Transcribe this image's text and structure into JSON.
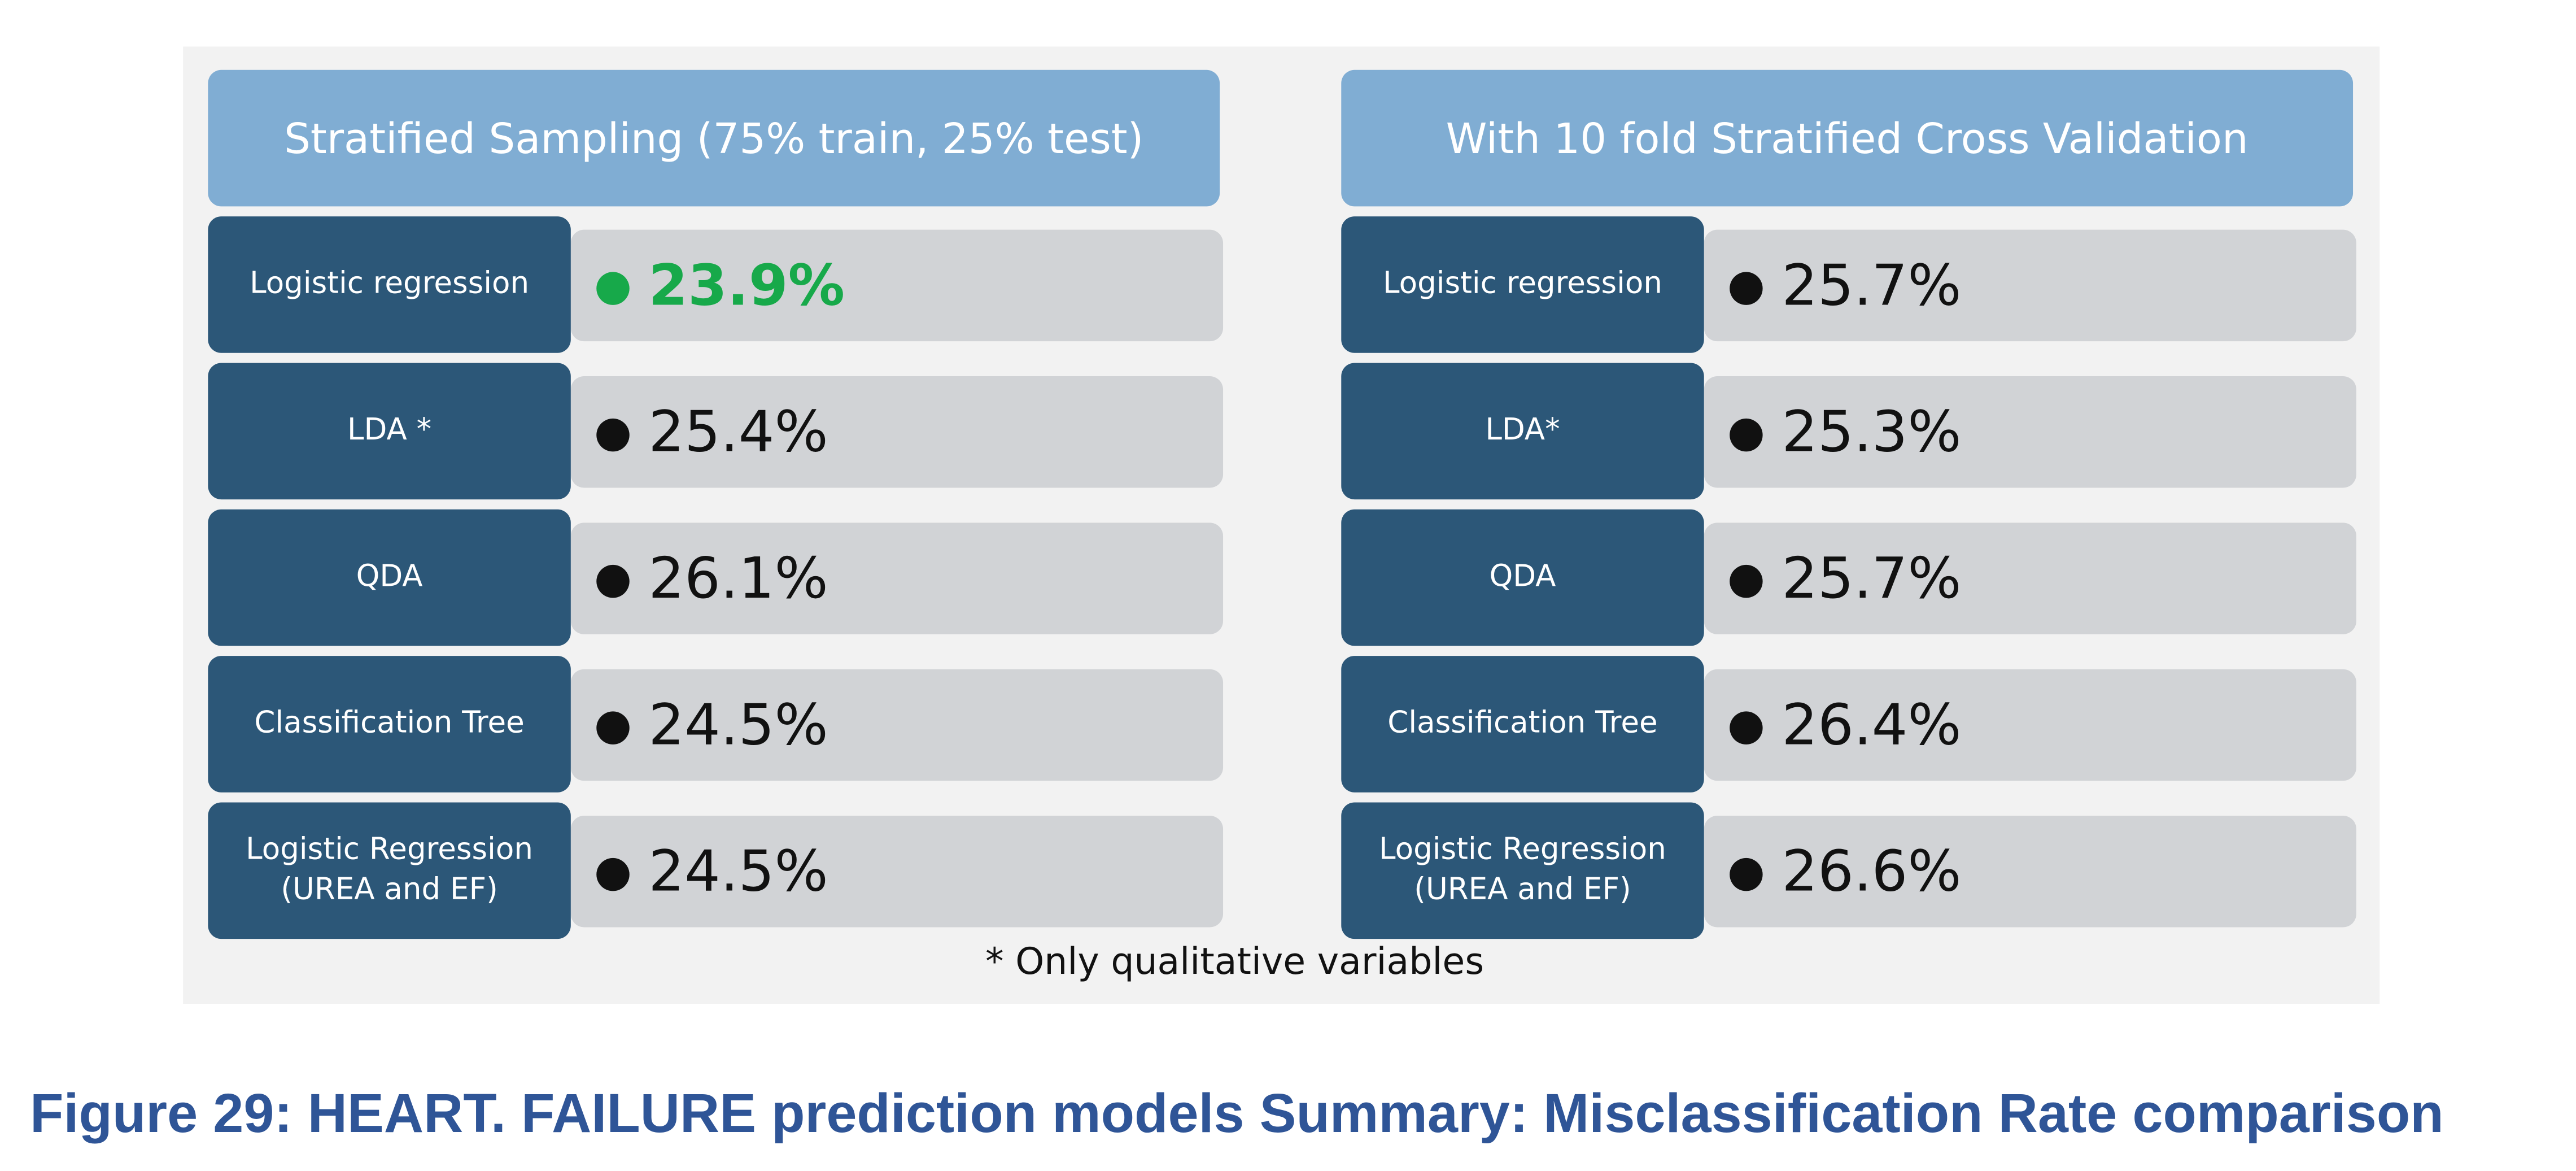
{
  "panels": [
    {
      "title": "Stratified Sampling (75% train, 25% test)",
      "rows": [
        {
          "model": "Logistic regression",
          "value": "23.9%"
        },
        {
          "model": "LDA *",
          "value": "25.4%"
        },
        {
          "model": "QDA",
          "value": "26.1%"
        },
        {
          "model": "Classification Tree",
          "value": "24.5%"
        },
        {
          "model": "Logistic Regression (UREA and EF)",
          "value": "24.5%"
        }
      ]
    },
    {
      "title": "With 10 fold Stratified Cross Validation",
      "rows": [
        {
          "model": "Logistic regression",
          "value": "25.7%"
        },
        {
          "model": "LDA*",
          "value": "25.3%"
        },
        {
          "model": "QDA",
          "value": "25.7%"
        },
        {
          "model": "Classification Tree",
          "value": "26.4%"
        },
        {
          "model": "Logistic Regression (UREA and EF)",
          "value": "26.6%"
        }
      ]
    }
  ],
  "footnote": "* Only qualitative variables",
  "caption": "Figure 29: HEART. FAILURE prediction models Summary: Misclassification Rate comparison"
}
